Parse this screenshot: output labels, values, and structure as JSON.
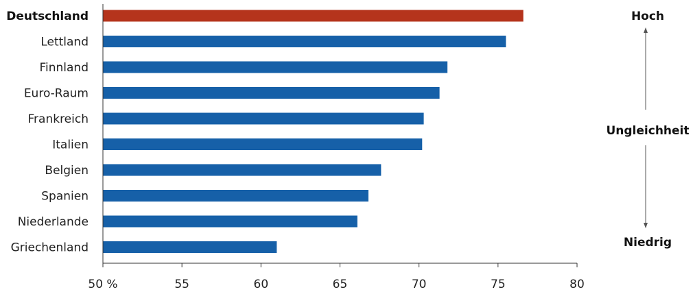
{
  "chart_data": {
    "type": "bar",
    "orientation": "horizontal",
    "categories": [
      "Deutschland",
      "Lettland",
      "Finnland",
      "Euro-Raum",
      "Frankreich",
      "Italien",
      "Belgien",
      "Spanien",
      "Niederlande",
      "Griechenland"
    ],
    "values": [
      76.6,
      75.5,
      71.8,
      71.3,
      70.3,
      70.2,
      67.6,
      66.8,
      66.1,
      61.0
    ],
    "highlight_index": 0,
    "colors": {
      "default": "#1660a8",
      "highlight": "#b5341c"
    },
    "xlim": [
      50,
      80
    ],
    "xticks": [
      50,
      55,
      60,
      65,
      70,
      75,
      80
    ],
    "xtick_labels": [
      "50 %",
      "55",
      "60",
      "65",
      "70",
      "75",
      "80"
    ],
    "grid": false,
    "side_scale": {
      "top": "Hoch",
      "middle": "Ungleichheit",
      "bottom": "Niedrig"
    }
  }
}
